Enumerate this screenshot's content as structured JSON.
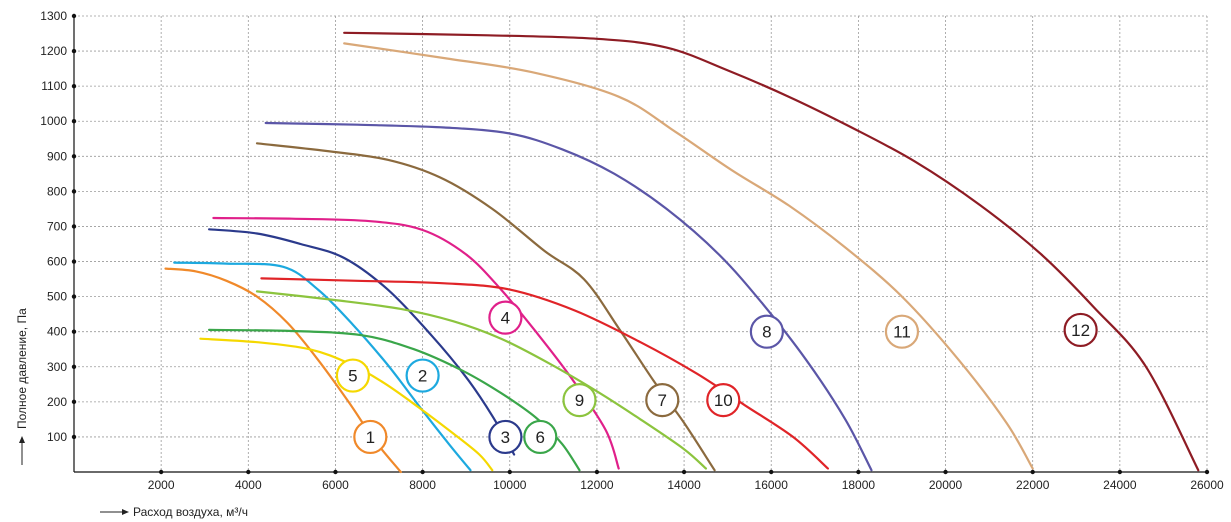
{
  "chart_data": {
    "type": "line",
    "title": "",
    "xlabel": "Расход воздуха, м³/ч",
    "ylabel": "Полное давление, Па",
    "xlim": [
      0,
      26000
    ],
    "ylim": [
      0,
      1300
    ],
    "x_ticks": [
      "2000",
      "4000",
      "6000",
      "8000",
      "10000",
      "12000",
      "14000",
      "16000",
      "18000",
      "20000",
      "22000",
      "24000",
      "26000"
    ],
    "y_ticks": [
      "100",
      "200",
      "300",
      "400",
      "500",
      "600",
      "700",
      "800",
      "900",
      "1000",
      "1100",
      "1200",
      "1300"
    ],
    "grid": true,
    "series": [
      {
        "label": "1",
        "color": "#f0892a",
        "label_at": [
          6800,
          100
        ],
        "x": [
          2100,
          2800,
          3500,
          4200,
          4900,
          5600,
          6300,
          6900,
          7500
        ],
        "y": [
          580,
          572,
          545,
          500,
          425,
          320,
          200,
          90,
          0
        ]
      },
      {
        "label": "2",
        "color": "#1da9df",
        "label_at": [
          8000,
          275
        ],
        "x": [
          2300,
          3500,
          4800,
          5600,
          6400,
          7200,
          8000,
          8600,
          9100
        ],
        "y": [
          597,
          594,
          585,
          520,
          420,
          305,
          175,
          80,
          5
        ]
      },
      {
        "label": "3",
        "color": "#2b3a8c",
        "label_at": [
          9900,
          100
        ],
        "x": [
          3100,
          4200,
          5200,
          6200,
          7200,
          8200,
          9000,
          9600,
          10100
        ],
        "y": [
          692,
          680,
          650,
          610,
          520,
          390,
          270,
          160,
          50
        ]
      },
      {
        "label": "4",
        "color": "#e0208a",
        "label_at": [
          9900,
          440
        ],
        "x": [
          3200,
          5000,
          6800,
          8000,
          9000,
          9800,
          10600,
          11400,
          12200,
          12500
        ],
        "y": [
          724,
          722,
          715,
          690,
          620,
          520,
          400,
          270,
          120,
          10
        ]
      },
      {
        "label": "5",
        "color": "#f5d800",
        "label_at": [
          6400,
          275
        ],
        "x": [
          2900,
          4200,
          5400,
          6300,
          7100,
          7900,
          8700,
          9300,
          9600
        ],
        "y": [
          380,
          370,
          350,
          310,
          255,
          185,
          110,
          50,
          5
        ]
      },
      {
        "label": "6",
        "color": "#3aa64a",
        "label_at": [
          10700,
          100
        ],
        "x": [
          3100,
          5000,
          6600,
          7800,
          8900,
          9800,
          10600,
          11200,
          11600
        ],
        "y": [
          405,
          402,
          390,
          350,
          290,
          225,
          155,
          80,
          5
        ]
      },
      {
        "label": "7",
        "color": "#8b6a3e",
        "label_at": [
          13500,
          205
        ],
        "x": [
          4200,
          5800,
          7200,
          8400,
          9600,
          10800,
          11700,
          12500,
          13300,
          14000,
          14700
        ],
        "y": [
          937,
          915,
          890,
          840,
          750,
          630,
          550,
          410,
          260,
          140,
          5
        ]
      },
      {
        "label": "8",
        "color": "#5b56a7",
        "label_at": [
          15900,
          400
        ],
        "x": [
          4400,
          6500,
          8500,
          10000,
          11200,
          12400,
          13600,
          14800,
          15800,
          16800,
          17700,
          18300
        ],
        "y": [
          995,
          990,
          982,
          965,
          920,
          850,
          750,
          620,
          480,
          320,
          150,
          5
        ]
      },
      {
        "label": "9",
        "color": "#8cc43e",
        "label_at": [
          11600,
          205
        ],
        "x": [
          4200,
          6000,
          7500,
          8700,
          9800,
          10900,
          12000,
          13000,
          14000,
          14500
        ],
        "y": [
          515,
          490,
          465,
          430,
          380,
          310,
          230,
          150,
          65,
          10
        ]
      },
      {
        "label": "10",
        "color": "#e02428",
        "label_at": [
          14900,
          205
        ],
        "x": [
          4300,
          6500,
          8500,
          10000,
          11500,
          13000,
          14300,
          15400,
          16500,
          17300
        ],
        "y": [
          552,
          545,
          538,
          520,
          460,
          370,
          280,
          190,
          100,
          10
        ]
      },
      {
        "label": "11",
        "color": "#d9a878",
        "label_at": [
          19000,
          400
        ],
        "x": [
          6200,
          8500,
          10500,
          12500,
          13800,
          15100,
          16400,
          17700,
          19000,
          20300,
          21400,
          22000
        ],
        "y": [
          1222,
          1180,
          1140,
          1070,
          970,
          860,
          760,
          640,
          500,
          320,
          140,
          10
        ]
      },
      {
        "label": "12",
        "color": "#8e1c24",
        "label_at": [
          23100,
          405
        ],
        "x": [
          6200,
          9500,
          12000,
          13600,
          15000,
          16400,
          17800,
          19300,
          20800,
          22200,
          23400,
          24600,
          25800
        ],
        "y": [
          1252,
          1245,
          1235,
          1210,
          1145,
          1070,
          985,
          885,
          760,
          620,
          470,
          300,
          5
        ]
      }
    ]
  }
}
